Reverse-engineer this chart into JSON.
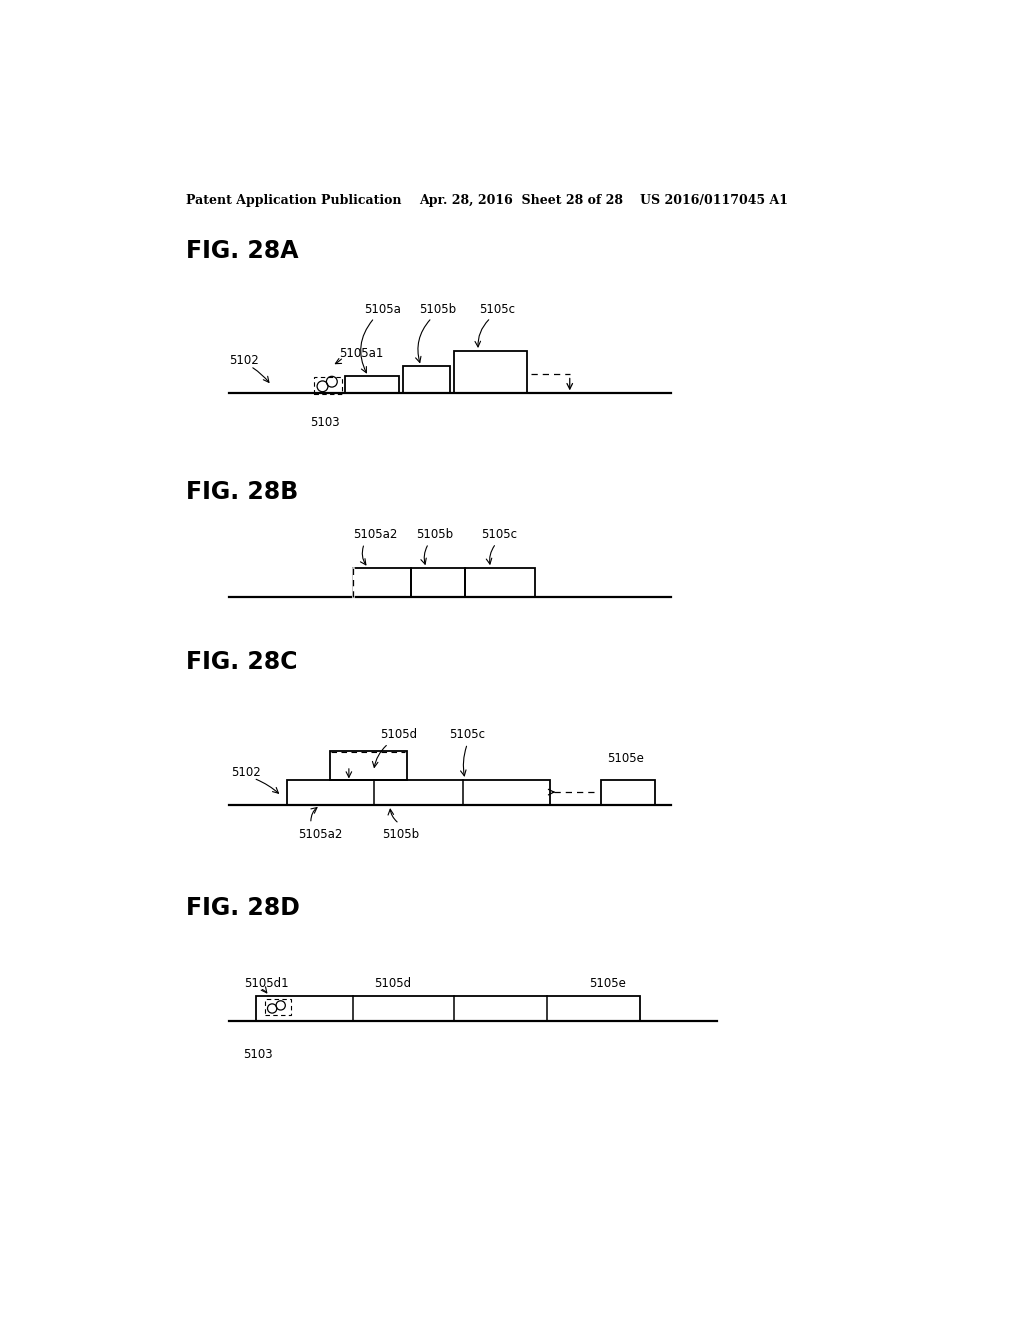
{
  "bg_color": "#ffffff",
  "header_left": "Patent Application Publication",
  "header_mid": "Apr. 28, 2016  Sheet 28 of 28",
  "header_right": "US 2016/0117045 A1"
}
